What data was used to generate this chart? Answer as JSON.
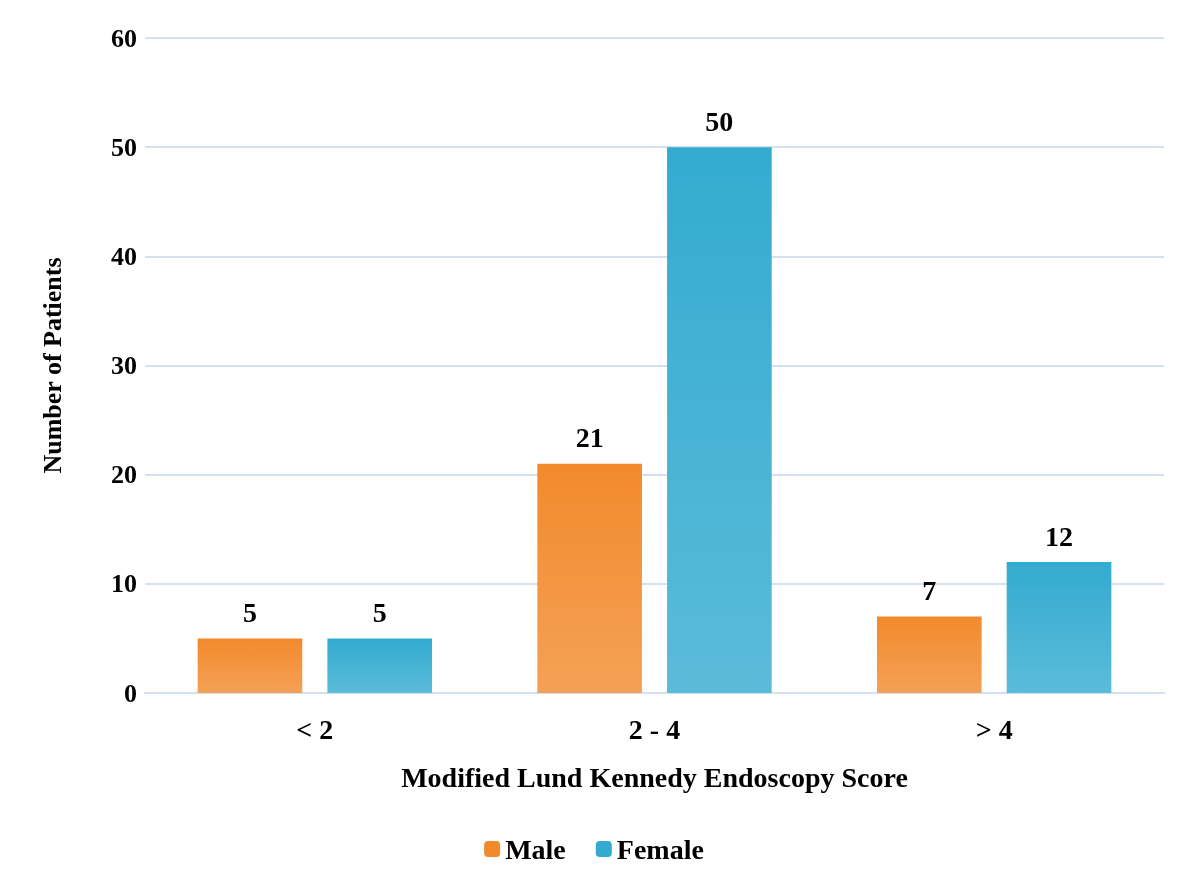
{
  "chart_data": {
    "type": "bar",
    "xlabel": "Modified Lund Kennedy Endoscopy Score",
    "ylabel": "Number of Patients",
    "categories": [
      "< 2",
      "2 - 4",
      "> 4"
    ],
    "series": [
      {
        "name": "Male",
        "color": "#f28a2c",
        "values": [
          5,
          21,
          7
        ]
      },
      {
        "name": "Female",
        "color": "#33abd0",
        "values": [
          5,
          50,
          12
        ]
      }
    ],
    "ylim": [
      0,
      60
    ],
    "yticks": [
      0,
      10,
      20,
      30,
      40,
      50,
      60
    ],
    "grid": "y",
    "legend": "bottom",
    "data_labels": true
  }
}
